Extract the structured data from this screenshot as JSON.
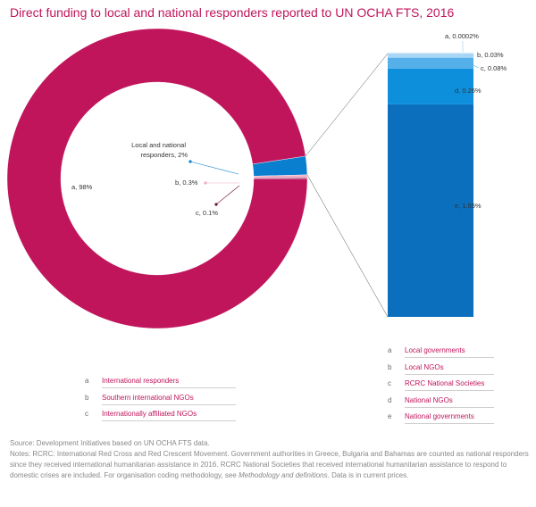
{
  "title": "Direct funding to local and national responders reported to UN OCHA FTS, 2016",
  "colors": {
    "title": "#c0155b",
    "international": "#c0155b",
    "local_national": "#0a7fcf",
    "b_small": "#f3a9c2",
    "c_small": "#6b1036",
    "bar_a": "#d6ecfb",
    "bar_b": "#a9d6f5",
    "bar_c": "#55b0ea",
    "bar_d": "#0d8fdc",
    "bar_e": "#0b6fbd",
    "connector": "#555555"
  },
  "chart_data": [
    {
      "type": "pie",
      "subtype": "donut",
      "slices": [
        {
          "key": "a",
          "label": "a, 98%",
          "value": 97.6,
          "name": "International responders"
        },
        {
          "key": "b",
          "label": "b, 0.3%",
          "value": 0.3,
          "name": "Southern international NGOs"
        },
        {
          "key": "c",
          "label": "c, 0.1%",
          "value": 0.1,
          "name": "Internationally affiliated NGOs"
        },
        {
          "key": "ln",
          "label": "Local and national responders, 2%",
          "value": 2.0,
          "name": "Local and national responders"
        }
      ]
    },
    {
      "type": "bar",
      "subtype": "stacked",
      "segments": [
        {
          "key": "e",
          "label": "e, 1.55%",
          "value": 1.55,
          "name": "National governments"
        },
        {
          "key": "d",
          "label": "d, 0.26%",
          "value": 0.26,
          "name": "National NGOs"
        },
        {
          "key": "c",
          "label": "c, 0.08%",
          "value": 0.08,
          "name": "RCRC National Societies"
        },
        {
          "key": "b",
          "label": "b, 0.03%",
          "value": 0.03,
          "name": "Local NGOs"
        },
        {
          "key": "a",
          "label": "a, 0.0002%",
          "value": 0.0002,
          "name": "Local governments"
        }
      ]
    }
  ],
  "legend_left": [
    {
      "key": "a",
      "text": "International responders"
    },
    {
      "key": "b",
      "text": "Southern international NGOs"
    },
    {
      "key": "c",
      "text": "Internationally affiliated NGOs"
    }
  ],
  "legend_right": [
    {
      "key": "a",
      "text": "Local governments"
    },
    {
      "key": "b",
      "text": "Local NGOs"
    },
    {
      "key": "c",
      "text": "RCRC National Societies"
    },
    {
      "key": "d",
      "text": "National NGOs"
    },
    {
      "key": "e",
      "text": "National governments"
    }
  ],
  "footer": {
    "source": "Source: Development Initiatives based on UN OCHA FTS data.",
    "notes": "Notes: RCRC: International Red Cross and Red Crescent Movement. Government authorities in Greece, Bulgaria and Bahamas are counted as national responders since they received international humanitarian assistance in 2016. RCRC National Societies that received international humanitarian assistance to respond to domestic crises are included. For organisation coding methodology, see",
    "notes_italic": "Methodology and definitions",
    "notes_end": ". Data is in current prices."
  }
}
